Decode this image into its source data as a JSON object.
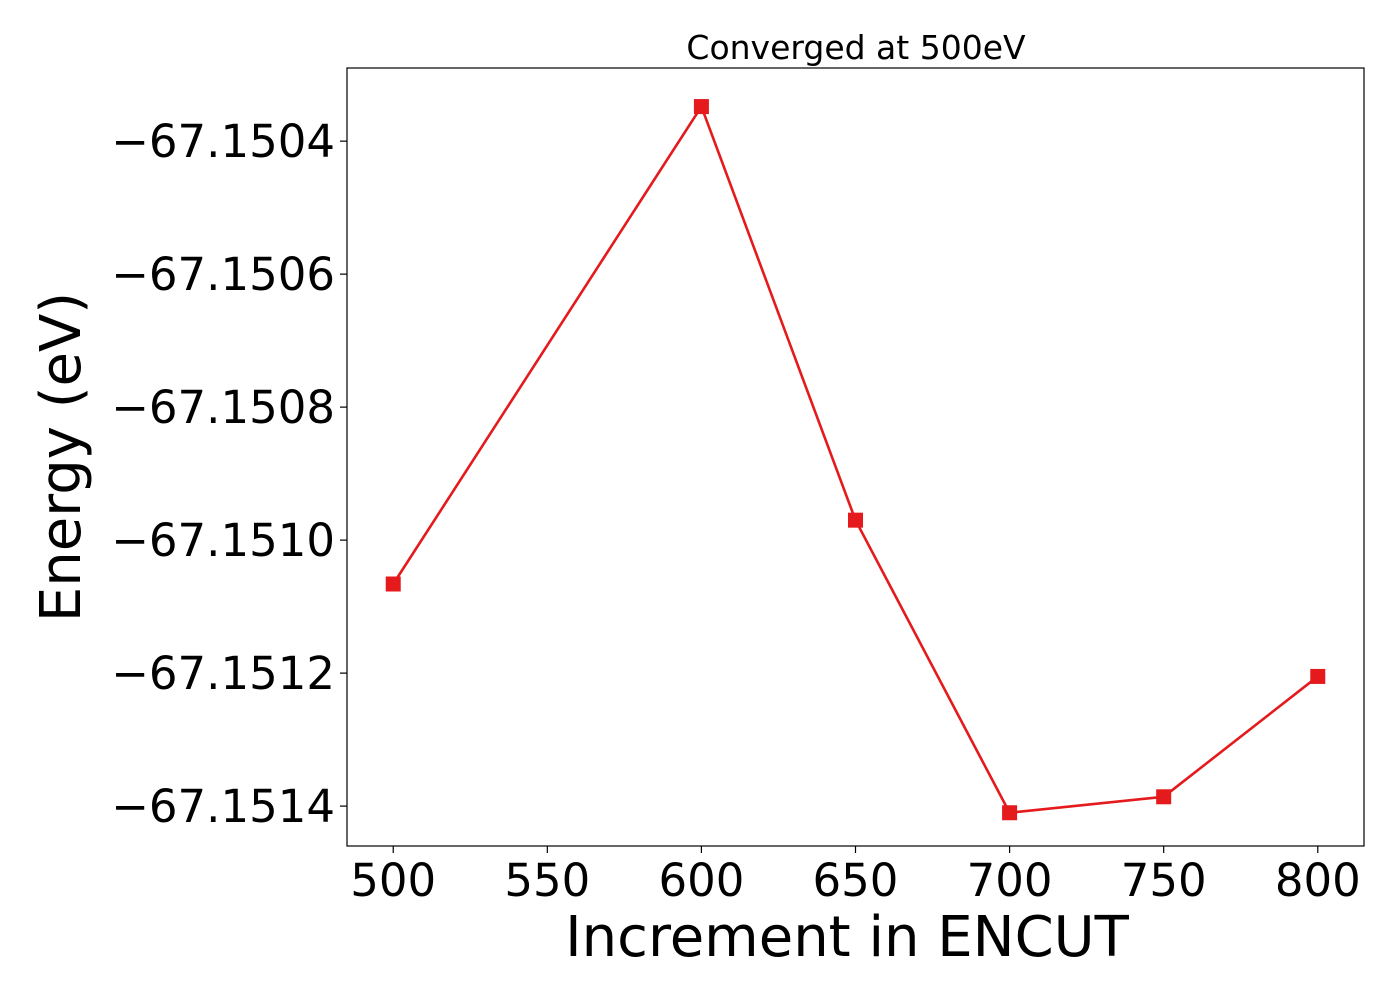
{
  "chart_data": {
    "type": "line",
    "title": "Converged at 500eV",
    "xlabel": "Increment in ENCUT",
    "ylabel": "Energy (eV)",
    "x": [
      500,
      600,
      650,
      700,
      750,
      800
    ],
    "series": [
      {
        "values": [
          -67.151066,
          -67.150348,
          -67.15097,
          -67.15141,
          -67.151386,
          -67.151205
        ],
        "color": "#e41a1c",
        "marker": "square"
      }
    ],
    "xticks": [
      500,
      550,
      600,
      650,
      700,
      750,
      800
    ],
    "xtick_labels": [
      "500",
      "550",
      "600",
      "650",
      "700",
      "750",
      "800"
    ],
    "yticks": [
      -67.1504,
      -67.1506,
      -67.1508,
      -67.151,
      -67.1512,
      -67.1514
    ],
    "ytick_labels": [
      "−67.1504",
      "−67.1506",
      "−67.1508",
      "−67.1510",
      "−67.1512",
      "−67.1514"
    ],
    "xlim": [
      485,
      815
    ],
    "ylim": [
      -67.15146,
      -67.15029
    ],
    "grid": false,
    "legend": false
  }
}
